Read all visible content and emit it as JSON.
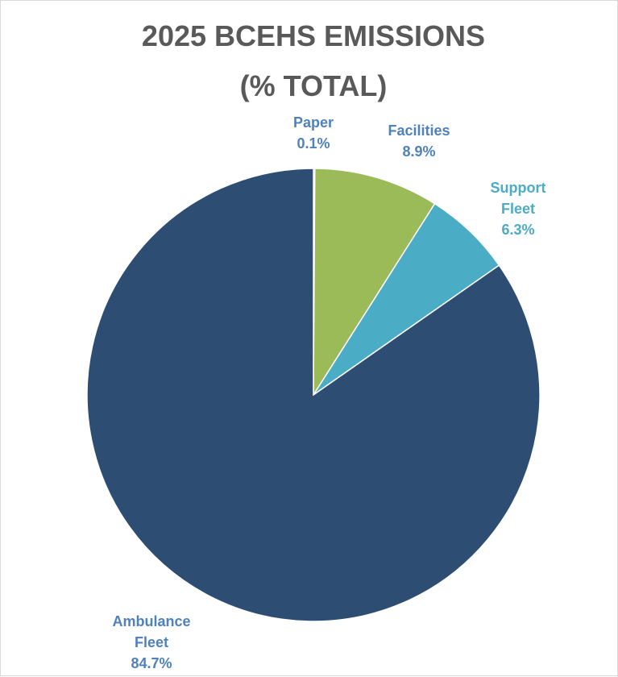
{
  "chart_data": {
    "type": "pie",
    "title_lines": [
      "2025 BCEHS EMISSIONS",
      "(% TOTAL)"
    ],
    "slices": [
      {
        "label_lines": [
          "Paper"
        ],
        "value": 0.1,
        "value_text": "0.1%",
        "color": "#4472C4",
        "label_color": "#4F81BD"
      },
      {
        "label_lines": [
          "Facilities"
        ],
        "value": 8.9,
        "value_text": "8.9%",
        "color": "#9BBB59",
        "label_color": "#4F81BD"
      },
      {
        "label_lines": [
          "Support",
          "Fleet"
        ],
        "value": 6.3,
        "value_text": "6.3%",
        "color": "#4BACC6",
        "label_color": "#4BACC6"
      },
      {
        "label_lines": [
          "Ambulance",
          "Fleet"
        ],
        "value": 84.7,
        "value_text": "84.7%",
        "color": "#2E4D73",
        "label_color": "#4F81BD"
      }
    ],
    "start_angle": "12 o'clock",
    "direction": "clockwise",
    "legend": "none"
  }
}
